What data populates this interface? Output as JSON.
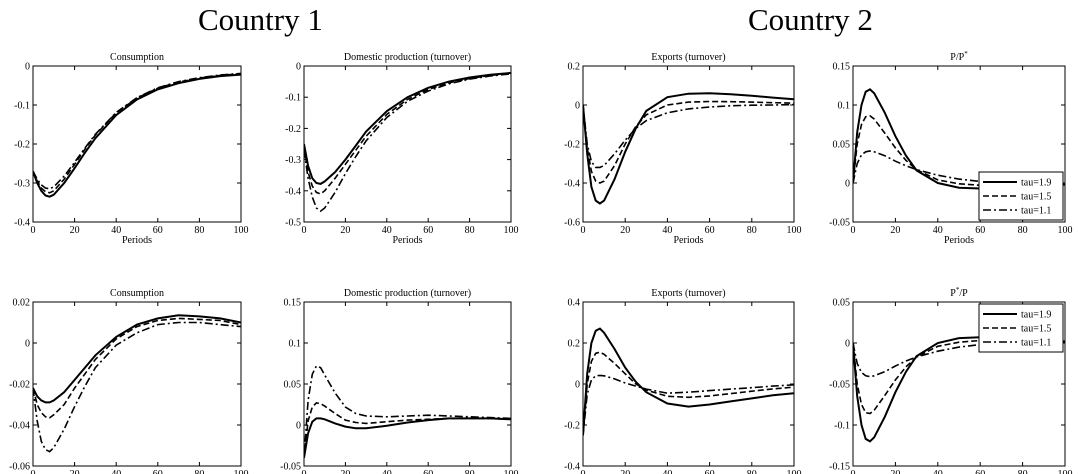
{
  "countries": [
    {
      "title": "Country 1"
    },
    {
      "title": "Country 2"
    }
  ],
  "chart_data": [
    {
      "type": "line",
      "country": "Country 1",
      "title": "Consumption",
      "xlabel": "Periods",
      "ylabel": "",
      "xlim": [
        0,
        100
      ],
      "ylim": [
        -0.4,
        0
      ],
      "xticks": [
        "0",
        "20",
        "40",
        "60",
        "80",
        "100"
      ],
      "yticks": [
        "-0.4",
        "-0.3",
        "-0.2",
        "-0.1",
        "0"
      ],
      "x": [
        0,
        2,
        4,
        6,
        8,
        10,
        15,
        20,
        25,
        30,
        40,
        50,
        60,
        70,
        80,
        90,
        100
      ],
      "legend": null,
      "series": [
        {
          "style": "solid",
          "values": [
            -0.27,
            -0.3,
            -0.32,
            -0.332,
            -0.335,
            -0.33,
            -0.3,
            -0.262,
            -0.222,
            -0.185,
            -0.126,
            -0.086,
            -0.06,
            -0.044,
            -0.033,
            -0.026,
            -0.022
          ]
        },
        {
          "style": "dashed",
          "values": [
            -0.27,
            -0.295,
            -0.313,
            -0.322,
            -0.325,
            -0.32,
            -0.29,
            -0.252,
            -0.213,
            -0.177,
            -0.12,
            -0.082,
            -0.057,
            -0.041,
            -0.031,
            -0.024,
            -0.02
          ]
        },
        {
          "style": "dashdot",
          "values": [
            -0.27,
            -0.29,
            -0.305,
            -0.313,
            -0.315,
            -0.31,
            -0.282,
            -0.247,
            -0.21,
            -0.175,
            -0.119,
            -0.081,
            -0.056,
            -0.04,
            -0.03,
            -0.023,
            -0.019
          ]
        }
      ]
    },
    {
      "type": "line",
      "country": "Country 1",
      "title": "Domestic production (turnover)",
      "xlabel": "Periods",
      "ylabel": "",
      "xlim": [
        0,
        100
      ],
      "ylim": [
        -0.5,
        0
      ],
      "xticks": [
        "0",
        "20",
        "40",
        "60",
        "80",
        "100"
      ],
      "yticks": [
        "-0.5",
        "-0.4",
        "-0.3",
        "-0.2",
        "-0.1",
        "0"
      ],
      "x": [
        0,
        2,
        4,
        6,
        8,
        10,
        15,
        20,
        25,
        30,
        40,
        50,
        60,
        70,
        80,
        90,
        100
      ],
      "legend": null,
      "series": [
        {
          "style": "solid",
          "values": [
            -0.25,
            -0.32,
            -0.36,
            -0.375,
            -0.378,
            -0.37,
            -0.34,
            -0.3,
            -0.255,
            -0.21,
            -0.145,
            -0.1,
            -0.07,
            -0.05,
            -0.037,
            -0.028,
            -0.022
          ]
        },
        {
          "style": "dashed",
          "values": [
            -0.26,
            -0.34,
            -0.385,
            -0.405,
            -0.41,
            -0.4,
            -0.36,
            -0.315,
            -0.27,
            -0.225,
            -0.155,
            -0.107,
            -0.075,
            -0.054,
            -0.04,
            -0.03,
            -0.024
          ]
        },
        {
          "style": "dashdot",
          "values": [
            -0.27,
            -0.36,
            -0.42,
            -0.455,
            -0.465,
            -0.455,
            -0.405,
            -0.345,
            -0.29,
            -0.24,
            -0.165,
            -0.113,
            -0.08,
            -0.057,
            -0.042,
            -0.032,
            -0.025
          ]
        }
      ]
    },
    {
      "type": "line",
      "country": "Country 1",
      "title": "Exports (turnover)",
      "xlabel": "Periods",
      "ylabel": "",
      "xlim": [
        0,
        100
      ],
      "ylim": [
        -0.6,
        0.2
      ],
      "xticks": [
        "0",
        "20",
        "40",
        "60",
        "80",
        "100"
      ],
      "yticks": [
        "-0.6",
        "-0.4",
        "-0.2",
        "0",
        "0.2"
      ],
      "x": [
        0,
        2,
        4,
        6,
        8,
        10,
        15,
        20,
        25,
        30,
        40,
        50,
        60,
        70,
        80,
        90,
        100
      ],
      "legend": null,
      "series": [
        {
          "style": "solid",
          "values": [
            0,
            -0.25,
            -0.42,
            -0.49,
            -0.505,
            -0.49,
            -0.38,
            -0.24,
            -0.12,
            -0.03,
            0.04,
            0.058,
            0.06,
            0.055,
            0.047,
            0.038,
            0.03
          ]
        },
        {
          "style": "dashed",
          "values": [
            0,
            -0.22,
            -0.34,
            -0.39,
            -0.4,
            -0.39,
            -0.31,
            -0.2,
            -0.11,
            -0.05,
            0.0,
            0.015,
            0.018,
            0.017,
            0.015,
            0.012,
            0.01
          ]
        },
        {
          "style": "dashdot",
          "values": [
            0,
            -0.2,
            -0.29,
            -0.32,
            -0.32,
            -0.31,
            -0.25,
            -0.18,
            -0.12,
            -0.08,
            -0.04,
            -0.02,
            -0.01,
            -0.004,
            -0.001,
            0.0,
            0.002
          ]
        }
      ]
    },
    {
      "type": "line",
      "country": "Country 1",
      "title": "P/P*",
      "xlabel": "Periods",
      "ylabel": "",
      "xlim": [
        0,
        100
      ],
      "ylim": [
        -0.05,
        0.15
      ],
      "xticks": [
        "0",
        "20",
        "40",
        "60",
        "80",
        "100"
      ],
      "yticks": [
        "-0.05",
        "0",
        "0.05",
        "0.1",
        "0.15"
      ],
      "x": [
        0,
        2,
        4,
        6,
        8,
        10,
        15,
        20,
        25,
        30,
        40,
        50,
        60,
        70,
        80,
        90,
        100
      ],
      "legend": {
        "position": "bottom-right",
        "entries": [
          "tau=1.9",
          "tau=1.5",
          "tau=1.1"
        ]
      },
      "series": [
        {
          "name": "tau=1.9",
          "style": "solid",
          "values": [
            0,
            0.065,
            0.1,
            0.117,
            0.12,
            0.115,
            0.09,
            0.06,
            0.035,
            0.016,
            0.0,
            -0.006,
            -0.007,
            -0.006,
            -0.004,
            -0.003,
            -0.002
          ]
        },
        {
          "name": "tau=1.5",
          "style": "dashed",
          "values": [
            0,
            0.05,
            0.075,
            0.085,
            0.086,
            0.082,
            0.064,
            0.045,
            0.029,
            0.017,
            0.004,
            -0.001,
            -0.003,
            -0.003,
            -0.002,
            -0.002,
            -0.001
          ]
        },
        {
          "name": "tau=1.1",
          "style": "dashdot",
          "values": [
            0,
            0.025,
            0.036,
            0.04,
            0.041,
            0.04,
            0.035,
            0.028,
            0.022,
            0.017,
            0.01,
            0.005,
            0.002,
            0.001,
            0.0,
            -0.001,
            -0.001
          ]
        }
      ]
    },
    {
      "type": "line",
      "country": "Country 2",
      "title": "Consumption",
      "xlabel": "Periods",
      "ylabel": "",
      "xlim": [
        0,
        100
      ],
      "ylim": [
        -0.06,
        0.02
      ],
      "xticks": [
        "0",
        "20",
        "40",
        "60",
        "80",
        "100"
      ],
      "yticks": [
        "-0.06",
        "-0.04",
        "-0.02",
        "0",
        "0.02"
      ],
      "x": [
        0,
        2,
        4,
        6,
        8,
        10,
        15,
        20,
        25,
        30,
        40,
        50,
        60,
        70,
        80,
        90,
        100
      ],
      "legend": null,
      "series": [
        {
          "style": "solid",
          "values": [
            -0.022,
            -0.026,
            -0.028,
            -0.029,
            -0.029,
            -0.028,
            -0.024,
            -0.018,
            -0.012,
            -0.006,
            0.003,
            0.009,
            0.012,
            0.0135,
            0.013,
            0.012,
            0.01
          ]
        },
        {
          "style": "dashed",
          "values": [
            -0.022,
            -0.03,
            -0.034,
            -0.036,
            -0.0365,
            -0.035,
            -0.03,
            -0.022,
            -0.015,
            -0.008,
            0.002,
            0.008,
            0.011,
            0.012,
            0.0115,
            0.011,
            0.009
          ]
        },
        {
          "style": "dashdot",
          "values": [
            -0.022,
            -0.038,
            -0.048,
            -0.052,
            -0.053,
            -0.051,
            -0.042,
            -0.031,
            -0.021,
            -0.012,
            -0.001,
            0.005,
            0.009,
            0.01,
            0.01,
            0.009,
            0.008
          ]
        }
      ]
    },
    {
      "type": "line",
      "country": "Country 2",
      "title": "Domestic production (turnover)",
      "xlabel": "Periods",
      "ylabel": "",
      "xlim": [
        0,
        100
      ],
      "ylim": [
        -0.05,
        0.15
      ],
      "xticks": [
        "0",
        "20",
        "40",
        "60",
        "80",
        "100"
      ],
      "yticks": [
        "-0.05",
        "0",
        "0.05",
        "0.1",
        "0.15"
      ],
      "x": [
        0,
        2,
        4,
        6,
        8,
        10,
        15,
        20,
        25,
        30,
        40,
        50,
        60,
        70,
        80,
        90,
        100
      ],
      "legend": null,
      "series": [
        {
          "style": "solid",
          "values": [
            -0.04,
            -0.01,
            0.004,
            0.008,
            0.008,
            0.007,
            0.002,
            -0.002,
            -0.004,
            -0.004,
            -0.001,
            0.003,
            0.006,
            0.008,
            0.008,
            0.008,
            0.007
          ]
        },
        {
          "style": "dashed",
          "values": [
            -0.04,
            0.005,
            0.022,
            0.027,
            0.026,
            0.023,
            0.014,
            0.006,
            0.003,
            0.002,
            0.004,
            0.006,
            0.007,
            0.008,
            0.008,
            0.008,
            0.007
          ]
        },
        {
          "style": "dashdot",
          "values": [
            -0.04,
            0.03,
            0.062,
            0.072,
            0.07,
            0.061,
            0.039,
            0.022,
            0.014,
            0.011,
            0.01,
            0.011,
            0.012,
            0.011,
            0.01,
            0.009,
            0.008
          ]
        }
      ]
    },
    {
      "type": "line",
      "country": "Country 2",
      "title": "Exports (turnover)",
      "xlabel": "Periods",
      "ylabel": "",
      "xlim": [
        0,
        100
      ],
      "ylim": [
        -0.4,
        0.4
      ],
      "xticks": [
        "0",
        "20",
        "40",
        "60",
        "80",
        "100"
      ],
      "yticks": [
        "-0.4",
        "-0.2",
        "0",
        "0.2",
        "0.4"
      ],
      "x": [
        0,
        2,
        4,
        6,
        8,
        10,
        15,
        20,
        25,
        30,
        40,
        50,
        60,
        70,
        80,
        90,
        100
      ],
      "legend": null,
      "series": [
        {
          "style": "solid",
          "values": [
            -0.25,
            0.05,
            0.2,
            0.26,
            0.27,
            0.25,
            0.17,
            0.08,
            0.01,
            -0.04,
            -0.095,
            -0.11,
            -0.1,
            -0.085,
            -0.07,
            -0.055,
            -0.045
          ]
        },
        {
          "style": "dashed",
          "values": [
            -0.25,
            0.0,
            0.11,
            0.15,
            0.155,
            0.145,
            0.1,
            0.05,
            0.0,
            -0.03,
            -0.06,
            -0.065,
            -0.058,
            -0.047,
            -0.035,
            -0.024,
            -0.015
          ]
        },
        {
          "style": "dashdot",
          "values": [
            -0.25,
            -0.05,
            0.02,
            0.04,
            0.042,
            0.04,
            0.025,
            0.005,
            -0.01,
            -0.025,
            -0.045,
            -0.04,
            -0.032,
            -0.025,
            -0.018,
            -0.01,
            -0.004
          ]
        }
      ]
    },
    {
      "type": "line",
      "country": "Country 2",
      "title": "P*/P",
      "xlabel": "Periods",
      "ylabel": "",
      "xlim": [
        0,
        100
      ],
      "ylim": [
        -0.15,
        0.05
      ],
      "xticks": [
        "0",
        "20",
        "40",
        "60",
        "80",
        "100"
      ],
      "yticks": [
        "-0.15",
        "-0.1",
        "-0.05",
        "0",
        "0.05"
      ],
      "x": [
        0,
        2,
        4,
        6,
        8,
        10,
        15,
        20,
        25,
        30,
        40,
        50,
        60,
        70,
        80,
        90,
        100
      ],
      "legend": {
        "position": "top-right",
        "entries": [
          "tau=1.9",
          "tau=1.5",
          "tau=1.1"
        ]
      },
      "series": [
        {
          "name": "tau=1.9",
          "style": "solid",
          "values": [
            0,
            -0.065,
            -0.1,
            -0.117,
            -0.12,
            -0.115,
            -0.09,
            -0.06,
            -0.035,
            -0.016,
            0.0,
            0.006,
            0.007,
            0.006,
            0.004,
            0.003,
            0.002
          ]
        },
        {
          "name": "tau=1.5",
          "style": "dashed",
          "values": [
            0,
            -0.05,
            -0.075,
            -0.085,
            -0.086,
            -0.082,
            -0.064,
            -0.045,
            -0.029,
            -0.017,
            -0.004,
            0.001,
            0.003,
            0.003,
            0.002,
            0.002,
            0.001
          ]
        },
        {
          "name": "tau=1.1",
          "style": "dashdot",
          "values": [
            0,
            -0.025,
            -0.036,
            -0.04,
            -0.041,
            -0.04,
            -0.035,
            -0.028,
            -0.022,
            -0.017,
            -0.01,
            -0.005,
            -0.002,
            -0.001,
            0.0,
            0.001,
            0.001
          ]
        }
      ]
    }
  ]
}
